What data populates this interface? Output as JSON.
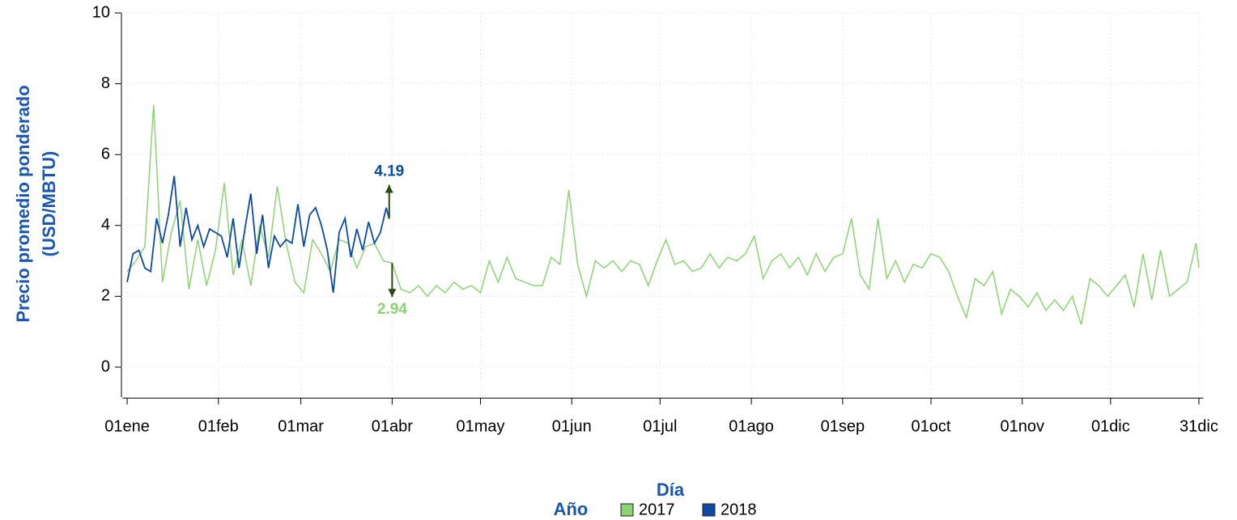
{
  "chart_data": {
    "type": "line",
    "xlabel": "Día",
    "ylabel": [
      "Precio promedio ponderado",
      "(USD/MBTU)"
    ],
    "legend_title": "Año",
    "grid": true,
    "xlim": [
      0,
      366
    ],
    "ylim": [
      -0.85,
      10
    ],
    "yticks": [
      0,
      2,
      4,
      6,
      8,
      10
    ],
    "xticks": [
      {
        "value": 1,
        "label": "01ene"
      },
      {
        "value": 32,
        "label": "01feb"
      },
      {
        "value": 60,
        "label": "01mar"
      },
      {
        "value": 91,
        "label": "01abr"
      },
      {
        "value": 121,
        "label": "01may"
      },
      {
        "value": 152,
        "label": "01jun"
      },
      {
        "value": 182,
        "label": "01jul"
      },
      {
        "value": 213,
        "label": "01ago"
      },
      {
        "value": 244,
        "label": "01sep"
      },
      {
        "value": 274,
        "label": "01oct"
      },
      {
        "value": 305,
        "label": "01nov"
      },
      {
        "value": 335,
        "label": "01dic"
      },
      {
        "value": 365,
        "label": "31dic"
      }
    ],
    "series": [
      {
        "name": "2017",
        "color": "#8cd373",
        "x": [
          1,
          4,
          7,
          10,
          13,
          16,
          19,
          22,
          25,
          28,
          31,
          34,
          37,
          40,
          43,
          46,
          49,
          52,
          55,
          58,
          61,
          64,
          67,
          70,
          73,
          76,
          79,
          82,
          85,
          88,
          91,
          94,
          97,
          100,
          103,
          106,
          109,
          112,
          115,
          118,
          121,
          124,
          127,
          130,
          133,
          136,
          139,
          142,
          145,
          148,
          151,
          154,
          157,
          160,
          163,
          166,
          169,
          172,
          175,
          178,
          181,
          184,
          187,
          190,
          193,
          196,
          199,
          202,
          205,
          208,
          211,
          214,
          217,
          220,
          223,
          226,
          229,
          232,
          235,
          238,
          241,
          244,
          247,
          250,
          253,
          256,
          259,
          262,
          265,
          268,
          271,
          274,
          277,
          280,
          283,
          286,
          289,
          292,
          295,
          298,
          301,
          304,
          307,
          310,
          313,
          316,
          319,
          322,
          325,
          328,
          331,
          334,
          337,
          340,
          343,
          346,
          349,
          352,
          355,
          358,
          361,
          364,
          365
        ],
        "values": [
          2.7,
          3.0,
          3.4,
          7.4,
          2.4,
          3.8,
          4.7,
          2.2,
          3.6,
          2.3,
          3.3,
          5.2,
          2.6,
          3.6,
          2.3,
          4.0,
          3.1,
          5.1,
          3.5,
          2.4,
          2.1,
          3.6,
          3.2,
          2.7,
          3.6,
          3.5,
          2.8,
          3.4,
          3.5,
          3.0,
          2.94,
          2.2,
          2.1,
          2.3,
          2.0,
          2.3,
          2.1,
          2.4,
          2.2,
          2.3,
          2.1,
          3.0,
          2.4,
          3.1,
          2.5,
          2.4,
          2.3,
          2.3,
          3.1,
          2.9,
          5.0,
          2.9,
          2.0,
          3.0,
          2.8,
          3.0,
          2.7,
          3.0,
          2.9,
          2.3,
          3.0,
          3.6,
          2.9,
          3.0,
          2.7,
          2.8,
          3.2,
          2.8,
          3.1,
          3.0,
          3.2,
          3.7,
          2.5,
          3.0,
          3.2,
          2.8,
          3.1,
          2.6,
          3.2,
          2.7,
          3.1,
          3.2,
          4.2,
          2.6,
          2.2,
          4.2,
          2.5,
          3.0,
          2.4,
          2.9,
          2.8,
          3.2,
          3.1,
          2.7,
          2.0,
          1.4,
          2.5,
          2.3,
          2.7,
          1.5,
          2.2,
          2.0,
          1.7,
          2.1,
          1.6,
          1.9,
          1.6,
          2.0,
          1.2,
          2.5,
          2.3,
          2.0,
          2.3,
          2.6,
          1.7,
          3.2,
          1.9,
          3.3,
          2.0,
          2.2,
          2.4,
          3.5,
          2.8
        ]
      },
      {
        "name": "2018",
        "color": "#0d4aa6",
        "x": [
          1,
          3,
          5,
          7,
          9,
          11,
          13,
          15,
          17,
          19,
          21,
          23,
          25,
          27,
          29,
          31,
          33,
          35,
          37,
          39,
          41,
          43,
          45,
          47,
          49,
          51,
          53,
          55,
          57,
          59,
          61,
          63,
          65,
          67,
          69,
          71,
          73,
          75,
          77,
          79,
          81,
          83,
          85,
          87,
          89,
          90
        ],
        "values": [
          2.4,
          3.2,
          3.3,
          2.8,
          2.7,
          4.2,
          3.5,
          4.3,
          5.4,
          3.4,
          4.5,
          3.6,
          4.0,
          3.4,
          3.9,
          3.8,
          3.7,
          3.1,
          4.2,
          2.8,
          3.9,
          4.9,
          3.2,
          4.3,
          2.8,
          3.7,
          3.4,
          3.6,
          3.5,
          4.6,
          3.4,
          4.3,
          4.5,
          4.0,
          3.3,
          2.1,
          3.8,
          4.2,
          3.1,
          3.9,
          3.3,
          4.1,
          3.5,
          3.8,
          4.5,
          4.19
        ]
      }
    ],
    "annotations": [
      {
        "label": "4.19",
        "x": 90,
        "y": 4.19,
        "series": 1
      },
      {
        "label": "2.94",
        "x": 91,
        "y": 2.94,
        "series": 0
      }
    ]
  }
}
